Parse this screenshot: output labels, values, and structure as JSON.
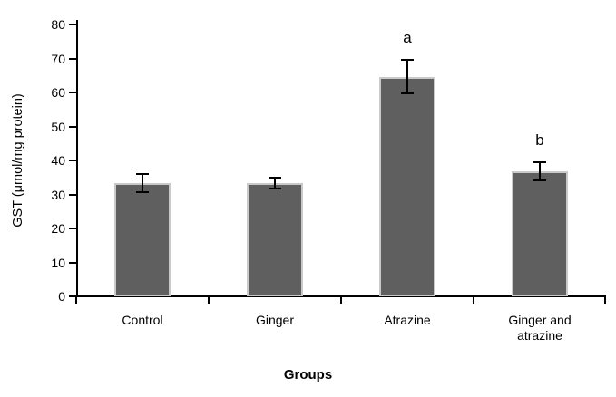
{
  "chart_data": {
    "type": "bar",
    "title": "",
    "categories": [
      "Control",
      "Ginger",
      "Atrazine",
      "Ginger and\natrazine"
    ],
    "values": [
      33.4,
      33.3,
      64.6,
      36.8
    ],
    "errors": [
      2.6,
      1.6,
      4.9,
      2.7
    ],
    "annotations": [
      {
        "bar_index": 2,
        "text": "a"
      },
      {
        "bar_index": 3,
        "text": "b"
      }
    ],
    "xlabel": "Groups",
    "ylabel": "GST (μmol/mg protein)",
    "ylim": [
      0,
      80
    ],
    "yticks": [
      0,
      10,
      20,
      30,
      40,
      50,
      60,
      70,
      80
    ],
    "grid": false,
    "legend": false,
    "bar_color": "#5F5F5F",
    "bar_border_color": "#C9C9C9",
    "axis_color": "#000000"
  }
}
